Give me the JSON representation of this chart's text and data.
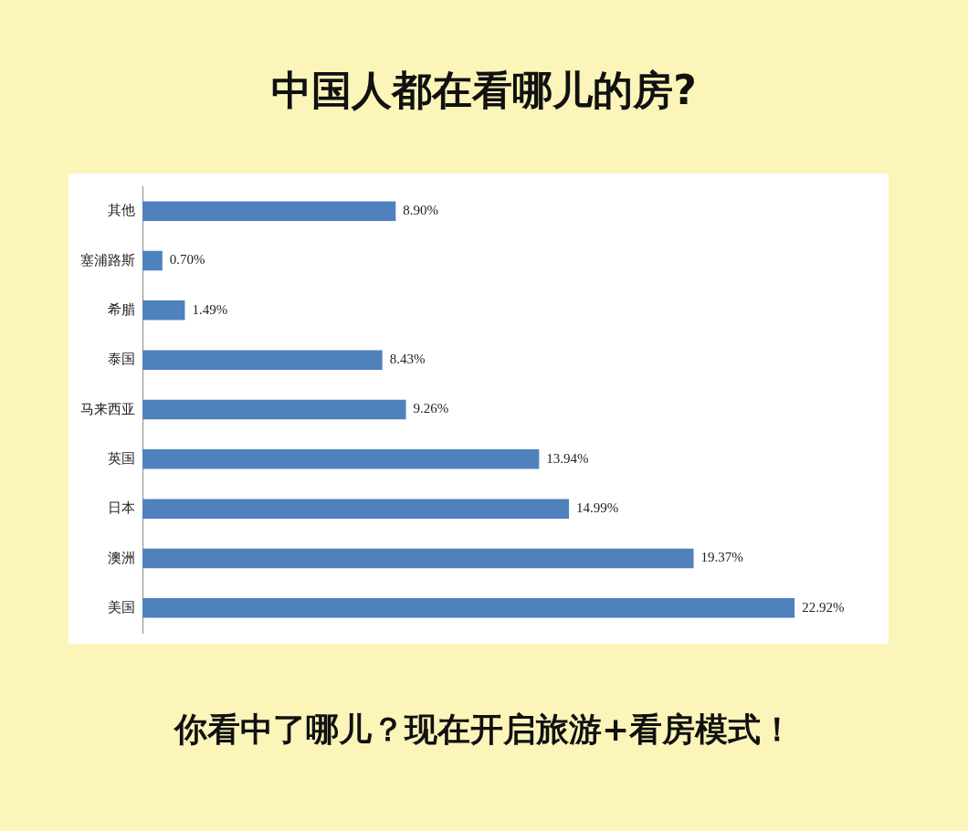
{
  "chart_data": {
    "type": "bar",
    "orientation": "horizontal",
    "title": "中国人都在看哪儿的房?",
    "categories": [
      "其他",
      "塞浦路斯",
      "希腊",
      "泰国",
      "马来西亚",
      "英国",
      "日本",
      "澳洲",
      "美国"
    ],
    "values": [
      8.9,
      0.7,
      1.49,
      8.43,
      9.26,
      13.94,
      14.99,
      19.37,
      22.92
    ],
    "value_labels": [
      "8.90%",
      "0.70%",
      "1.49%",
      "8.43%",
      "9.26%",
      "13.94%",
      "14.99%",
      "19.37%",
      "22.92%"
    ],
    "color": "#4f81bd",
    "annotations": [
      "你看中了哪儿？现在开启旅游+看房模式！"
    ]
  }
}
